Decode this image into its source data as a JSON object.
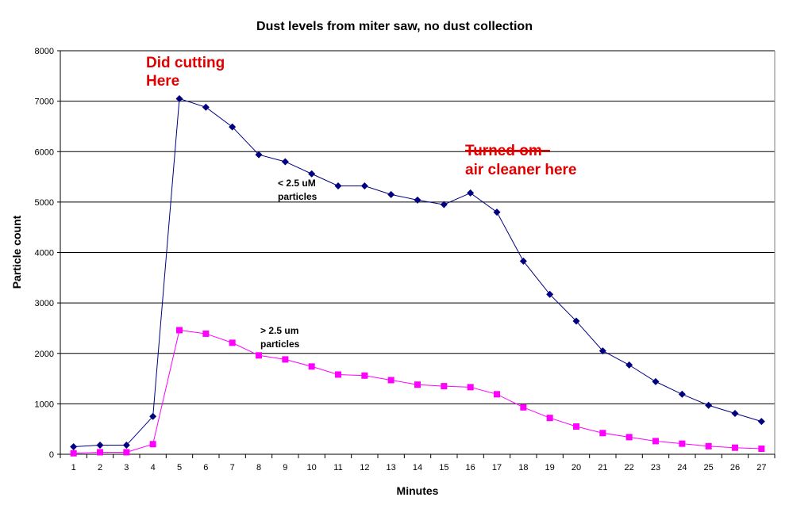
{
  "chart_data": {
    "type": "line",
    "title": "Dust levels from miter saw, no dust collection",
    "xlabel": "Minutes",
    "ylabel": "Particle count",
    "categories": [
      1,
      2,
      3,
      4,
      5,
      6,
      7,
      8,
      9,
      10,
      11,
      12,
      13,
      14,
      15,
      16,
      17,
      18,
      19,
      20,
      21,
      22,
      23,
      24,
      25,
      26,
      27
    ],
    "ylim": [
      0,
      8000
    ],
    "yticks": [
      0,
      1000,
      2000,
      3000,
      4000,
      5000,
      6000,
      7000,
      8000
    ],
    "grid": "horizontal",
    "series": [
      {
        "color": "#000080",
        "marker": "diamond",
        "values": [
          150,
          180,
          180,
          750,
          7050,
          6880,
          6490,
          5940,
          5800,
          5560,
          5320,
          5320,
          5150,
          5040,
          4950,
          5180,
          4800,
          3830,
          3170,
          2640,
          2050,
          1770,
          1440,
          1190,
          970,
          810,
          650
        ]
      },
      {
        "color": "#ff00ff",
        "marker": "square",
        "values": [
          20,
          40,
          40,
          200,
          2460,
          2390,
          2210,
          1960,
          1880,
          1740,
          1580,
          1560,
          1470,
          1380,
          1350,
          1330,
          1190,
          930,
          720,
          550,
          420,
          340,
          260,
          210,
          160,
          130,
          110
        ]
      }
    ],
    "annotations": {
      "did_cutting_1": "Did cutting",
      "did_cutting_2": "Here",
      "turned_on_1": "Turned om",
      "turned_on_2": "air cleaner here",
      "small_1": "< 2.5 uM",
      "small_2": "particles",
      "large_1": "> 2.5 um",
      "large_2": "particles"
    }
  }
}
